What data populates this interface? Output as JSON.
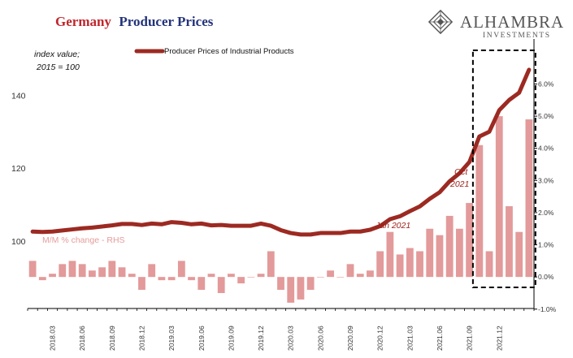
{
  "title": {
    "part1": "Germany",
    "part2": "Producer Prices"
  },
  "logo": {
    "main": "ALHAMBRA",
    "sub": "INVESTMENTS"
  },
  "colors": {
    "line": "#9c2a22",
    "bars": "#e39a9a",
    "title_red": "#c0262c",
    "title_blue": "#23337a",
    "annotation": "#9c1f17"
  },
  "chart_data": {
    "type": "bar+line",
    "index_note": [
      "index value;",
      "2015 = 100"
    ],
    "bar_series_label": "M/M % change - RHS",
    "legend": {
      "line": "Producer Prices of Industrial Products",
      "placement": "top-center"
    },
    "annotations": {
      "jan2021": "Jan 2021",
      "oct2021": [
        "Oct",
        "2021"
      ]
    },
    "x": [
      "2018.01",
      "2018.02",
      "2018.03",
      "2018.04",
      "2018.05",
      "2018.06",
      "2018.07",
      "2018.08",
      "2018.09",
      "2018.10",
      "2018.11",
      "2018.12",
      "2019.01",
      "2019.02",
      "2019.03",
      "2019.04",
      "2019.05",
      "2019.06",
      "2019.07",
      "2019.08",
      "2019.09",
      "2019.10",
      "2019.11",
      "2019.12",
      "2020.01",
      "2020.02",
      "2020.03",
      "2020.04",
      "2020.05",
      "2020.06",
      "2020.07",
      "2020.08",
      "2020.09",
      "2020.10",
      "2020.11",
      "2020.12",
      "2021.01",
      "2021.02",
      "2021.03",
      "2021.04",
      "2021.05",
      "2021.06",
      "2021.07",
      "2021.08",
      "2021.09",
      "2021.10",
      "2021.11",
      "2021.12",
      "2022.01",
      "2022.02",
      "2022.03"
    ],
    "x_tick_labels": [
      "2018.03",
      "2018.06",
      "2018.09",
      "2018.12",
      "2019.03",
      "2019.06",
      "2019.09",
      "2019.12",
      "2020.03",
      "2020.06",
      "2020.09",
      "2020.12",
      "2021.03",
      "2021.06",
      "2021.09",
      "2021.12"
    ],
    "ppi": [
      102.6,
      102.5,
      102.6,
      102.9,
      103.2,
      103.5,
      103.7,
      104.0,
      104.3,
      104.7,
      104.7,
      104.4,
      104.8,
      104.6,
      105.2,
      105.0,
      104.6,
      104.8,
      104.3,
      104.4,
      104.2,
      104.2,
      104.2,
      104.8,
      104.2,
      103.0,
      102.2,
      101.8,
      101.8,
      102.2,
      102.2,
      102.2,
      102.6,
      102.6,
      103.1,
      104.1,
      106.0,
      106.8,
      108.2,
      109.5,
      111.6,
      113.4,
      116.4,
      118.6,
      121.7,
      128.7,
      130.0,
      135.9,
      138.7,
      140.7,
      147.0
    ],
    "mom_pct": [
      0.5,
      -0.1,
      0.1,
      0.4,
      0.5,
      0.4,
      0.2,
      0.3,
      0.5,
      0.3,
      0.1,
      -0.4,
      0.4,
      -0.1,
      -0.1,
      0.5,
      -0.1,
      -0.4,
      0.1,
      -0.5,
      0.1,
      -0.2,
      0.0,
      0.1,
      0.8,
      -0.4,
      -0.8,
      -0.7,
      -0.4,
      0.0,
      0.2,
      0.0,
      0.4,
      0.1,
      0.2,
      0.8,
      1.4,
      0.7,
      0.9,
      0.8,
      1.5,
      1.3,
      1.9,
      1.5,
      2.3,
      4.1,
      0.8,
      5.0,
      2.2,
      1.4,
      4.9
    ],
    "y_left": {
      "ticks": [
        100,
        120,
        140
      ],
      "range": [
        81.5,
        155
      ]
    },
    "y_right": {
      "ticks": [
        "-1.0%",
        "0.0%",
        "1.0%",
        "2.0%",
        "3.0%",
        "4.0%",
        "5.0%",
        "6.0%"
      ],
      "range": [
        -0.98,
        7.35
      ]
    },
    "highlight_box": {
      "from": "2021.10",
      "to": "2022.03"
    }
  }
}
